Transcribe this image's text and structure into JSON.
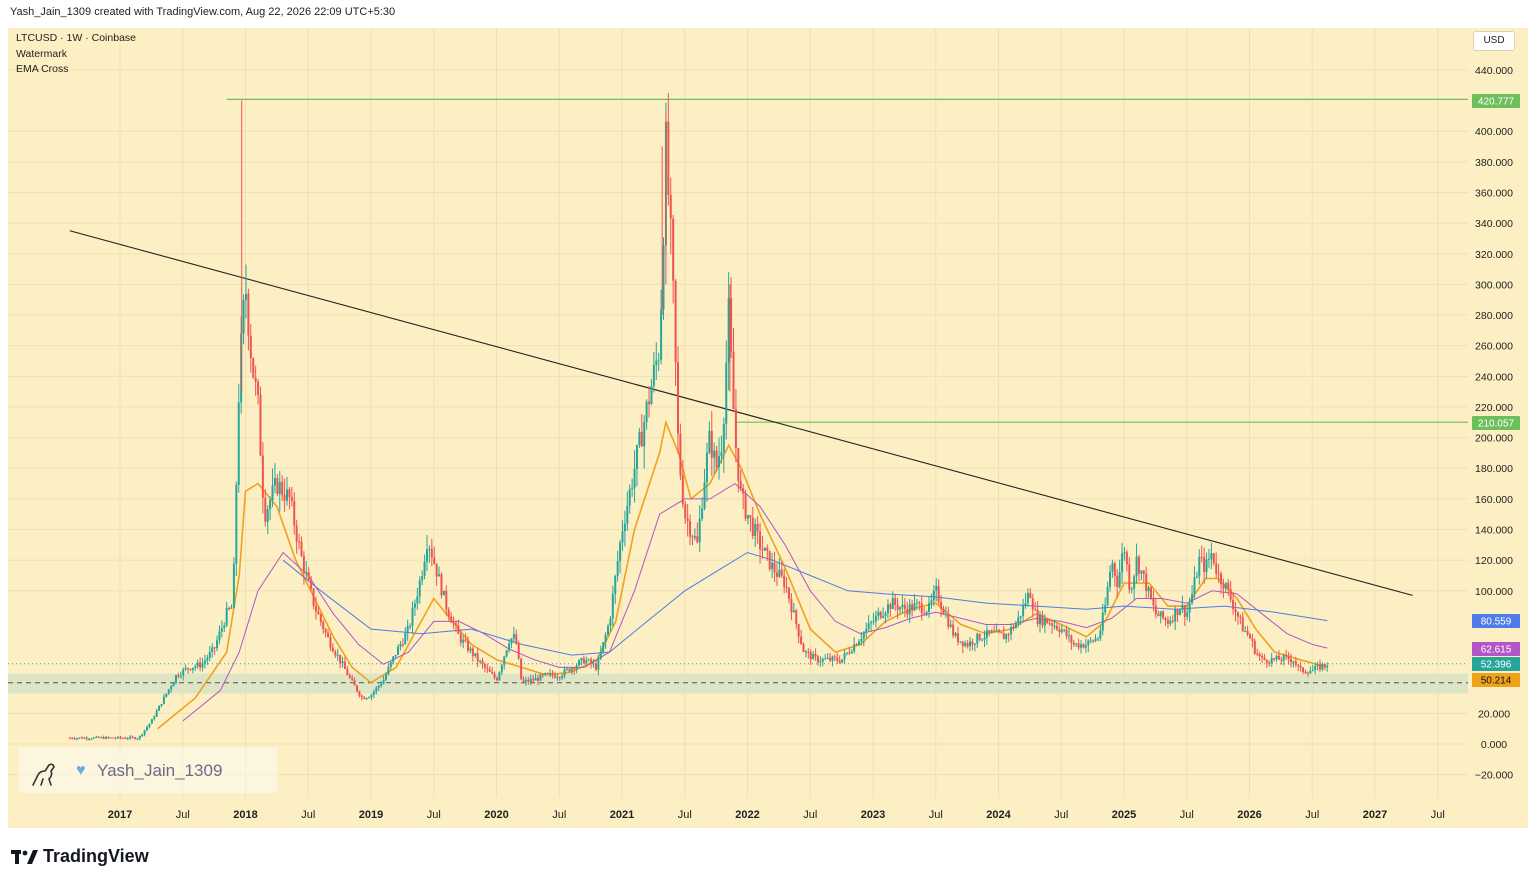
{
  "header": {
    "attribution": "Yash_Jain_1309 created with TradingView.com, Aug 22, 2026 22:09 UTC+5:30"
  },
  "legend": {
    "symbol": "LTCUSD · 1W · Coinbase",
    "indicator1": "Watermark",
    "indicator2": "EMA Cross"
  },
  "currency_button": "USD",
  "watermark": {
    "author": "Yash_Jain_1309",
    "heart_icon": "blue-heart-icon",
    "logo_icon": "dinosaur-icon"
  },
  "brand": {
    "logo_icon": "tradingview-logo-icon",
    "name": "TradingView"
  },
  "colors": {
    "background": "#fcefc4",
    "up_candle": "#26a69a",
    "down_candle": "#ef5350",
    "ema_fast": "#f0a21b",
    "ema_mid": "#b455c6",
    "ema_slow": "#4f7be8",
    "level_line": "#6cbf5b",
    "trendline": "#222222",
    "support_zone": "#d7e3c4"
  },
  "chart_data": {
    "type": "candlestick",
    "title": "",
    "x_tick_labels": [
      "2017",
      "Jul",
      "2018",
      "Jul",
      "2019",
      "Jul",
      "2020",
      "Jul",
      "2021",
      "Jul",
      "2022",
      "Jul",
      "2023",
      "Jul",
      "2024",
      "Jul",
      "2025",
      "Jul",
      "2026",
      "Jul",
      "2027",
      "Jul"
    ],
    "y_tick_labels": [
      "440.000",
      "400.000",
      "380.000",
      "360.000",
      "340.000",
      "320.000",
      "300.000",
      "280.000",
      "260.000",
      "240.000",
      "220.000",
      "200.000",
      "180.000",
      "160.000",
      "140.000",
      "120.000",
      "100.000",
      "20.000",
      "0.000",
      "−20.000"
    ],
    "ylim": [
      -25,
      455
    ],
    "xlim": [
      2016.55,
      2027.65
    ],
    "price_series": {
      "name": "LTCUSD",
      "points": [
        [
          2016.6,
          4
        ],
        [
          2016.9,
          4
        ],
        [
          2017.15,
          4
        ],
        [
          2017.25,
          15
        ],
        [
          2017.35,
          30
        ],
        [
          2017.45,
          45
        ],
        [
          2017.55,
          50
        ],
        [
          2017.65,
          52
        ],
        [
          2017.75,
          62
        ],
        [
          2017.85,
          85
        ],
        [
          2017.9,
          90
        ],
        [
          2017.95,
          240
        ],
        [
          2018.0,
          300
        ],
        [
          2018.05,
          250
        ],
        [
          2018.1,
          220
        ],
        [
          2018.15,
          150
        ],
        [
          2018.25,
          170
        ],
        [
          2018.35,
          160
        ],
        [
          2018.45,
          120
        ],
        [
          2018.55,
          90
        ],
        [
          2018.65,
          70
        ],
        [
          2018.75,
          55
        ],
        [
          2018.85,
          40
        ],
        [
          2018.93,
          30
        ],
        [
          2019.0,
          32
        ],
        [
          2019.1,
          42
        ],
        [
          2019.2,
          60
        ],
        [
          2019.3,
          75
        ],
        [
          2019.4,
          110
        ],
        [
          2019.45,
          135
        ],
        [
          2019.5,
          120
        ],
        [
          2019.6,
          90
        ],
        [
          2019.7,
          70
        ],
        [
          2019.8,
          60
        ],
        [
          2019.9,
          50
        ],
        [
          2020.0,
          42
        ],
        [
          2020.1,
          68
        ],
        [
          2020.15,
          70
        ],
        [
          2020.2,
          40
        ],
        [
          2020.3,
          42
        ],
        [
          2020.4,
          45
        ],
        [
          2020.5,
          45
        ],
        [
          2020.6,
          50
        ],
        [
          2020.7,
          55
        ],
        [
          2020.8,
          50
        ],
        [
          2020.9,
          80
        ],
        [
          2021.0,
          140
        ],
        [
          2021.1,
          180
        ],
        [
          2021.2,
          220
        ],
        [
          2021.25,
          240
        ],
        [
          2021.3,
          260
        ],
        [
          2021.35,
          390
        ],
        [
          2021.4,
          310
        ],
        [
          2021.45,
          190
        ],
        [
          2021.5,
          150
        ],
        [
          2021.55,
          140
        ],
        [
          2021.6,
          130
        ],
        [
          2021.65,
          170
        ],
        [
          2021.7,
          200
        ],
        [
          2021.75,
          180
        ],
        [
          2021.8,
          200
        ],
        [
          2021.85,
          280
        ],
        [
          2021.9,
          200
        ],
        [
          2021.95,
          160
        ],
        [
          2022.0,
          150
        ],
        [
          2022.1,
          130
        ],
        [
          2022.2,
          115
        ],
        [
          2022.3,
          105
        ],
        [
          2022.35,
          90
        ],
        [
          2022.45,
          60
        ],
        [
          2022.55,
          55
        ],
        [
          2022.65,
          55
        ],
        [
          2022.75,
          55
        ],
        [
          2022.85,
          65
        ],
        [
          2022.95,
          75
        ],
        [
          2023.05,
          85
        ],
        [
          2023.15,
          92
        ],
        [
          2023.25,
          88
        ],
        [
          2023.35,
          90
        ],
        [
          2023.45,
          88
        ],
        [
          2023.5,
          100
        ],
        [
          2023.55,
          90
        ],
        [
          2023.65,
          70
        ],
        [
          2023.75,
          65
        ],
        [
          2023.85,
          70
        ],
        [
          2023.95,
          72
        ],
        [
          2024.05,
          70
        ],
        [
          2024.15,
          80
        ],
        [
          2024.25,
          100
        ],
        [
          2024.3,
          82
        ],
        [
          2024.4,
          80
        ],
        [
          2024.5,
          75
        ],
        [
          2024.6,
          65
        ],
        [
          2024.7,
          65
        ],
        [
          2024.8,
          70
        ],
        [
          2024.85,
          90
        ],
        [
          2024.9,
          120
        ],
        [
          2024.95,
          105
        ],
        [
          2025.0,
          130
        ],
        [
          2025.05,
          100
        ],
        [
          2025.1,
          120
        ],
        [
          2025.15,
          110
        ],
        [
          2025.25,
          85
        ],
        [
          2025.35,
          80
        ],
        [
          2025.45,
          90
        ],
        [
          2025.5,
          85
        ],
        [
          2025.55,
          100
        ],
        [
          2025.6,
          120
        ],
        [
          2025.65,
          115
        ],
        [
          2025.7,
          125
        ],
        [
          2025.75,
          110
        ],
        [
          2025.8,
          105
        ],
        [
          2025.85,
          95
        ],
        [
          2025.9,
          85
        ],
        [
          2025.95,
          75
        ],
        [
          2026.0,
          70
        ],
        [
          2026.05,
          60
        ],
        [
          2026.1,
          55
        ],
        [
          2026.2,
          55
        ],
        [
          2026.3,
          56
        ],
        [
          2026.35,
          55
        ],
        [
          2026.4,
          48
        ],
        [
          2026.5,
          48
        ],
        [
          2026.55,
          50
        ],
        [
          2026.62,
          52.396
        ]
      ]
    },
    "ema_series": [
      {
        "name": "",
        "color": "#f0a21b",
        "points": [
          [
            2017.3,
            10
          ],
          [
            2017.6,
            30
          ],
          [
            2017.85,
            60
          ],
          [
            2017.95,
            110
          ],
          [
            2018.0,
            165
          ],
          [
            2018.1,
            170
          ],
          [
            2018.25,
            155
          ],
          [
            2018.4,
            120
          ],
          [
            2018.55,
            95
          ],
          [
            2018.7,
            70
          ],
          [
            2018.85,
            50
          ],
          [
            2019.0,
            40
          ],
          [
            2019.2,
            50
          ],
          [
            2019.4,
            80
          ],
          [
            2019.5,
            95
          ],
          [
            2019.6,
            85
          ],
          [
            2019.8,
            65
          ],
          [
            2020.0,
            55
          ],
          [
            2020.2,
            50
          ],
          [
            2020.4,
            45
          ],
          [
            2020.6,
            47
          ],
          [
            2020.8,
            55
          ],
          [
            2020.95,
            80
          ],
          [
            2021.1,
            140
          ],
          [
            2021.3,
            190
          ],
          [
            2021.35,
            210
          ],
          [
            2021.45,
            190
          ],
          [
            2021.55,
            160
          ],
          [
            2021.7,
            170
          ],
          [
            2021.85,
            195
          ],
          [
            2021.95,
            180
          ],
          [
            2022.1,
            150
          ],
          [
            2022.3,
            115
          ],
          [
            2022.5,
            75
          ],
          [
            2022.7,
            60
          ],
          [
            2022.9,
            65
          ],
          [
            2023.1,
            80
          ],
          [
            2023.3,
            88
          ],
          [
            2023.5,
            92
          ],
          [
            2023.7,
            78
          ],
          [
            2023.9,
            72
          ],
          [
            2024.1,
            75
          ],
          [
            2024.3,
            85
          ],
          [
            2024.5,
            78
          ],
          [
            2024.7,
            70
          ],
          [
            2024.85,
            80
          ],
          [
            2025.0,
            105
          ],
          [
            2025.2,
            105
          ],
          [
            2025.35,
            90
          ],
          [
            2025.5,
            90
          ],
          [
            2025.65,
            108
          ],
          [
            2025.75,
            108
          ],
          [
            2025.9,
            95
          ],
          [
            2026.05,
            75
          ],
          [
            2026.2,
            60
          ],
          [
            2026.4,
            55
          ],
          [
            2026.62,
            50.214
          ]
        ]
      },
      {
        "name": "",
        "color": "#b455c6",
        "points": [
          [
            2017.5,
            15
          ],
          [
            2017.8,
            35
          ],
          [
            2017.95,
            60
          ],
          [
            2018.1,
            100
          ],
          [
            2018.3,
            125
          ],
          [
            2018.5,
            110
          ],
          [
            2018.7,
            85
          ],
          [
            2018.9,
            65
          ],
          [
            2019.1,
            52
          ],
          [
            2019.3,
            60
          ],
          [
            2019.5,
            80
          ],
          [
            2019.7,
            80
          ],
          [
            2019.9,
            72
          ],
          [
            2020.1,
            62
          ],
          [
            2020.3,
            55
          ],
          [
            2020.5,
            50
          ],
          [
            2020.7,
            50
          ],
          [
            2020.9,
            60
          ],
          [
            2021.1,
            100
          ],
          [
            2021.3,
            150
          ],
          [
            2021.5,
            160
          ],
          [
            2021.7,
            160
          ],
          [
            2021.9,
            170
          ],
          [
            2022.1,
            155
          ],
          [
            2022.3,
            130
          ],
          [
            2022.5,
            100
          ],
          [
            2022.7,
            80
          ],
          [
            2022.9,
            72
          ],
          [
            2023.1,
            76
          ],
          [
            2023.3,
            82
          ],
          [
            2023.5,
            86
          ],
          [
            2023.7,
            82
          ],
          [
            2023.9,
            78
          ],
          [
            2024.1,
            78
          ],
          [
            2024.3,
            82
          ],
          [
            2024.5,
            80
          ],
          [
            2024.7,
            76
          ],
          [
            2024.9,
            82
          ],
          [
            2025.1,
            95
          ],
          [
            2025.3,
            95
          ],
          [
            2025.5,
            92
          ],
          [
            2025.7,
            100
          ],
          [
            2025.9,
            98
          ],
          [
            2026.1,
            85
          ],
          [
            2026.3,
            72
          ],
          [
            2026.5,
            65
          ],
          [
            2026.62,
            62.615
          ]
        ]
      },
      {
        "name": "",
        "color": "#4f7be8",
        "points": [
          [
            2018.3,
            120
          ],
          [
            2018.6,
            100
          ],
          [
            2019.0,
            75
          ],
          [
            2019.4,
            72
          ],
          [
            2019.8,
            75
          ],
          [
            2020.2,
            65
          ],
          [
            2020.6,
            58
          ],
          [
            2020.9,
            60
          ],
          [
            2021.2,
            80
          ],
          [
            2021.5,
            100
          ],
          [
            2021.8,
            115
          ],
          [
            2022.0,
            125
          ],
          [
            2022.2,
            120
          ],
          [
            2022.5,
            110
          ],
          [
            2022.8,
            100
          ],
          [
            2023.1,
            98
          ],
          [
            2023.5,
            96
          ],
          [
            2023.9,
            92
          ],
          [
            2024.3,
            90
          ],
          [
            2024.7,
            88
          ],
          [
            2025.0,
            90
          ],
          [
            2025.4,
            88
          ],
          [
            2025.8,
            90
          ],
          [
            2026.2,
            86
          ],
          [
            2026.62,
            80.559
          ]
        ]
      }
    ],
    "horizontal_levels": [
      {
        "label": "420.777",
        "value": 420.777,
        "color": "#6cbf5b"
      },
      {
        "label": "210.057",
        "value": 210.057,
        "color": "#6cbf5b"
      }
    ],
    "trendline": {
      "from": [
        2016.6,
        335
      ],
      "to": [
        2027.3,
        97
      ]
    },
    "support_zone": {
      "from": 33,
      "to": 46
    },
    "price_badges": [
      {
        "label": "80.559",
        "value": 80.559,
        "color": "#4f7be8"
      },
      {
        "label": "62.615",
        "value": 62.615,
        "color": "#b455c6"
      },
      {
        "label": "52.396",
        "value": 52.396,
        "color": "#26a69a"
      },
      {
        "label": "50.214",
        "value": 50.214,
        "color": "#f0a21b"
      }
    ],
    "grid": true
  }
}
